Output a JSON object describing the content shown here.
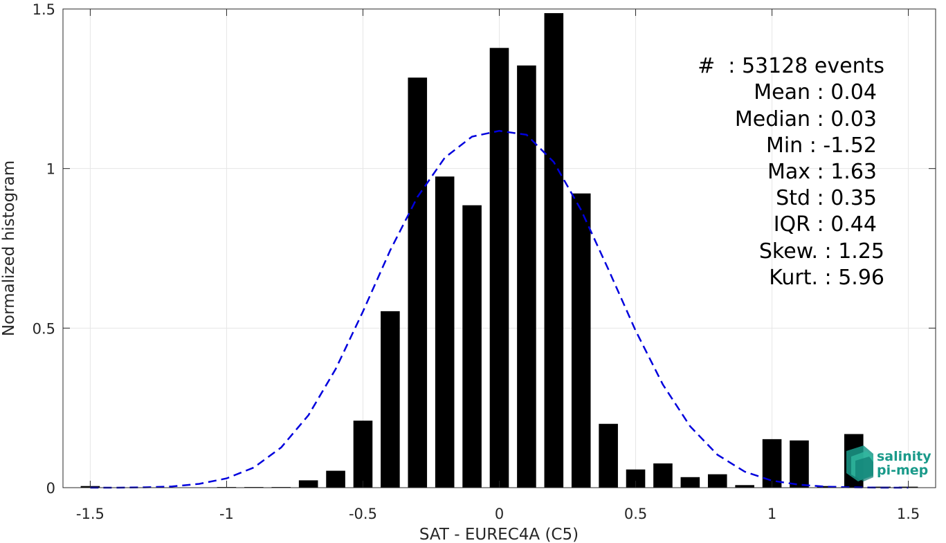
{
  "chart_data": {
    "type": "bar",
    "xlabel": "SAT - EUREC4A (C5)",
    "ylabel": "Normalized histogram",
    "xlim": [
      -1.6,
      1.6
    ],
    "ylim": [
      0,
      1.5
    ],
    "xticks": [
      -1.5,
      -1,
      -0.5,
      0,
      0.5,
      1,
      1.5
    ],
    "xtick_labels": [
      "-1.5",
      "-1",
      "-0.5",
      "0",
      "0.5",
      "1",
      "1.5"
    ],
    "yticks": [
      0,
      0.5,
      1,
      1.5
    ],
    "ytick_labels": [
      "0",
      "0.5",
      "1",
      "1.5"
    ],
    "grid": true,
    "bar_color": "#000000",
    "fit_color": "#0000dd",
    "bin_width": 0.1,
    "bars": [
      {
        "x": -1.5,
        "y": 0.005
      },
      {
        "x": -1.0,
        "y": 0.002
      },
      {
        "x": -0.9,
        "y": 0.002
      },
      {
        "x": -0.8,
        "y": 0.002
      },
      {
        "x": -0.7,
        "y": 0.023
      },
      {
        "x": -0.6,
        "y": 0.053
      },
      {
        "x": -0.5,
        "y": 0.21
      },
      {
        "x": -0.4,
        "y": 0.553
      },
      {
        "x": -0.3,
        "y": 1.285
      },
      {
        "x": -0.2,
        "y": 0.975
      },
      {
        "x": -0.1,
        "y": 0.885
      },
      {
        "x": 0.0,
        "y": 1.378
      },
      {
        "x": 0.1,
        "y": 1.323
      },
      {
        "x": 0.2,
        "y": 1.487
      },
      {
        "x": 0.3,
        "y": 0.922
      },
      {
        "x": 0.4,
        "y": 0.2
      },
      {
        "x": 0.5,
        "y": 0.057
      },
      {
        "x": 0.6,
        "y": 0.076
      },
      {
        "x": 0.7,
        "y": 0.033
      },
      {
        "x": 0.8,
        "y": 0.042
      },
      {
        "x": 0.9,
        "y": 0.008
      },
      {
        "x": 1.0,
        "y": 0.152
      },
      {
        "x": 1.1,
        "y": 0.148
      },
      {
        "x": 1.2,
        "y": 0.005
      },
      {
        "x": 1.3,
        "y": 0.168
      },
      {
        "x": 1.4,
        "y": 0.003
      },
      {
        "x": 1.5,
        "y": 0.003
      }
    ],
    "fit_curve": {
      "type": "gaussian",
      "x": [
        -1.5,
        -1.4,
        -1.3,
        -1.2,
        -1.1,
        -1.0,
        -0.9,
        -0.8,
        -0.7,
        -0.6,
        -0.5,
        -0.4,
        -0.3,
        -0.2,
        -0.1,
        0.0,
        0.1,
        0.2,
        0.3,
        0.4,
        0.5,
        0.6,
        0.7,
        0.8,
        0.9,
        1.0,
        1.1,
        1.2,
        1.3,
        1.4,
        1.5
      ],
      "y": [
        0.0,
        0.0,
        0.001,
        0.004,
        0.012,
        0.029,
        0.063,
        0.126,
        0.227,
        0.372,
        0.552,
        0.744,
        0.911,
        1.034,
        1.1,
        1.118,
        1.106,
        1.02,
        0.87,
        0.684,
        0.492,
        0.323,
        0.192,
        0.103,
        0.05,
        0.022,
        0.009,
        0.003,
        0.001,
        0.0,
        0.0
      ]
    }
  },
  "stats": {
    "lines": [
      "#  : 53128 events",
      "Mean : 0.04",
      "Median : 0.03",
      "Min : -1.52",
      "Max : 1.63",
      "Std : 0.35",
      "IQR : 0.44",
      "Skew. : 1.25",
      "Kurt. : 5.96"
    ]
  },
  "logo": {
    "line1": "salinity",
    "line2": "pi-mep",
    "color": "#1a9a8a"
  }
}
